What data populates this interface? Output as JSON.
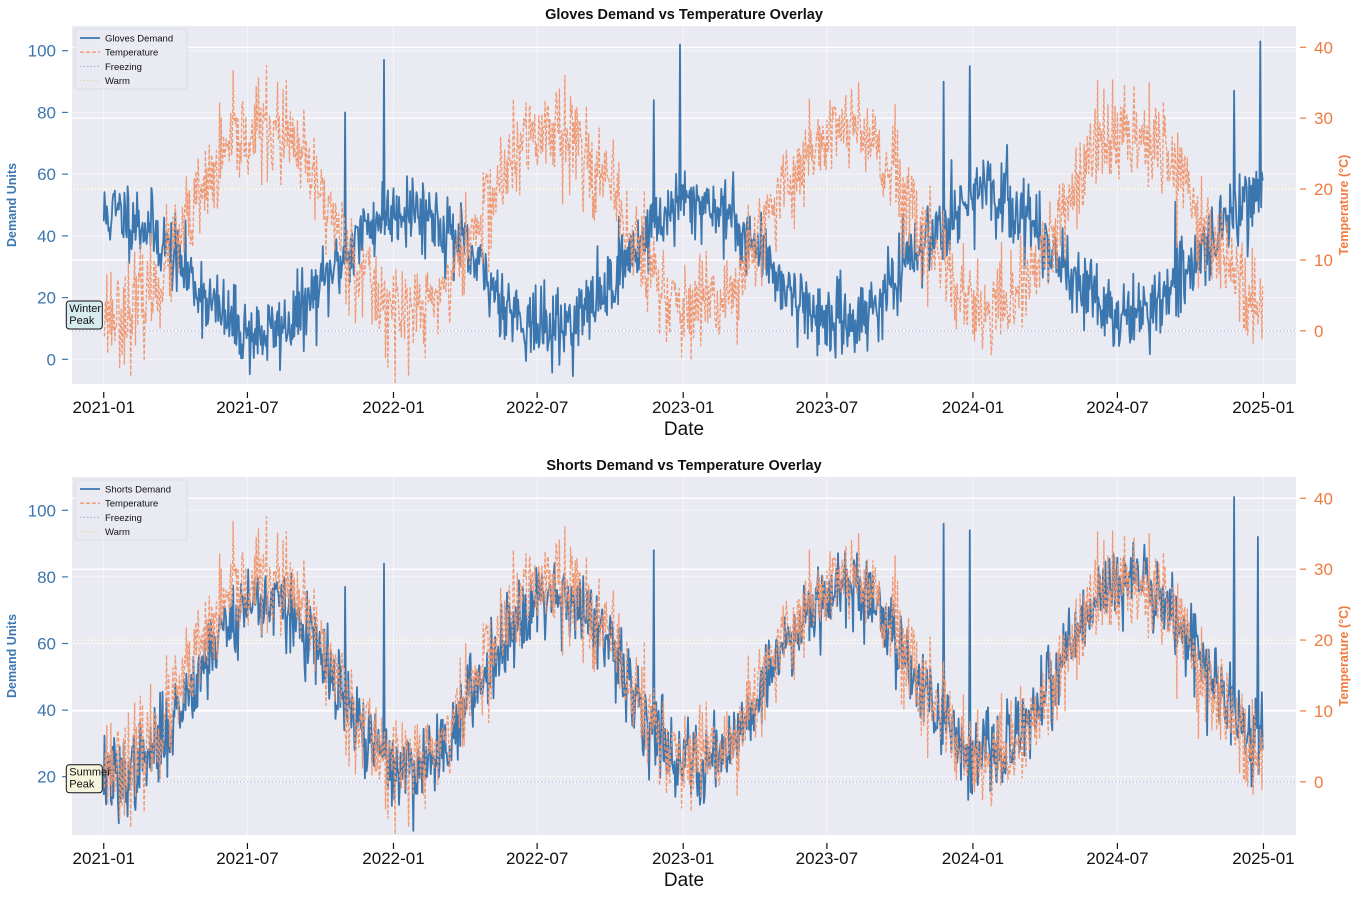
{
  "colors": {
    "demand": "#3b76af",
    "temperature": "#f0966e",
    "temperature_axis": "#f07a3f",
    "freezing": "#a8a8d8",
    "warm": "#d9d8b0",
    "plot_bg": "#e9eaf2",
    "grid": "#ffffff"
  },
  "xlabel": "Date",
  "chart_data": [
    {
      "type": "line",
      "title": "Gloves Demand vs Temperature Overlay",
      "xlabel": "Date",
      "ylabel": "Demand Units",
      "y2label": "Temperature (°C)",
      "x_range": [
        "2021-01-01",
        "2024-12-31"
      ],
      "xlim": [
        "2020-11-22",
        "2025-02-11"
      ],
      "ylim": [
        -8,
        108
      ],
      "y2lim": [
        -7.5,
        43
      ],
      "x_ticks": [
        "2021-01",
        "2021-07",
        "2022-01",
        "2022-07",
        "2023-01",
        "2023-07",
        "2024-01",
        "2024-07",
        "2025-01"
      ],
      "y_ticks": [
        0,
        20,
        40,
        60,
        80,
        100
      ],
      "y2_ticks": [
        0,
        10,
        20,
        30,
        40
      ],
      "grid": true,
      "legend_position": "top-left",
      "legend": [
        "Gloves Demand",
        "Temperature",
        "Freezing",
        "Warm"
      ],
      "reference_lines": [
        {
          "name": "Freezing",
          "y2": 0
        },
        {
          "name": "Warm",
          "y2": 20
        }
      ],
      "annotation": {
        "text": [
          "Winter",
          "Peak"
        ],
        "x": "2020-12-10",
        "y": 15
      },
      "series": [
        {
          "name": "Gloves Demand",
          "axis": "left",
          "style": "solid",
          "model": {
            "base": 27,
            "amplitude": 20,
            "peak_day": 15,
            "trend_per_year": 2,
            "noise": 6,
            "seed": 11
          },
          "spikes": [
            [
              "2021-11-01",
              80
            ],
            [
              "2021-12-20",
              97
            ],
            [
              "2022-11-25",
              84
            ],
            [
              "2022-12-28",
              102
            ],
            [
              "2023-11-25",
              90
            ],
            [
              "2023-12-28",
              95
            ],
            [
              "2024-11-25",
              87
            ],
            [
              "2024-12-28",
              103
            ]
          ]
        },
        {
          "name": "Temperature",
          "axis": "right",
          "style": "dashed",
          "model": {
            "base": 15.5,
            "amplitude": 13,
            "peak_day": 200,
            "trend_per_year": 0,
            "noise": 3.5,
            "seed": 23
          },
          "spikes": [
            [
              "2021-08-15",
              34
            ],
            [
              "2022-08-05",
              36
            ],
            [
              "2023-08-10",
              35
            ],
            [
              "2024-08-10",
              35
            ],
            [
              "2021-02-10",
              -2
            ],
            [
              "2023-03-10",
              -2
            ],
            [
              "2024-01-25",
              -2
            ]
          ]
        }
      ]
    },
    {
      "type": "line",
      "title": "Shorts Demand vs Temperature Overlay",
      "xlabel": "Date",
      "ylabel": "Demand Units",
      "y2label": "Temperature (°C)",
      "x_range": [
        "2021-01-01",
        "2024-12-31"
      ],
      "xlim": [
        "2020-11-22",
        "2025-02-11"
      ],
      "ylim": [
        2.5,
        110
      ],
      "y2lim": [
        -7.5,
        43
      ],
      "x_ticks": [
        "2021-01",
        "2021-07",
        "2022-01",
        "2022-07",
        "2023-01",
        "2023-07",
        "2024-01",
        "2024-07",
        "2025-01"
      ],
      "y_ticks": [
        20,
        40,
        60,
        80,
        100
      ],
      "y2_ticks": [
        0,
        10,
        20,
        30,
        40
      ],
      "grid": true,
      "legend_position": "top-left",
      "legend": [
        "Shorts Demand",
        "Temperature",
        "Freezing",
        "Warm"
      ],
      "reference_lines": [
        {
          "name": "Freezing",
          "y2": 0
        },
        {
          "name": "Warm",
          "y2": 20
        }
      ],
      "annotation": {
        "text": [
          "Summer",
          "Peak"
        ],
        "x": "2020-12-10",
        "y": 20
      },
      "series": [
        {
          "name": "Shorts Demand",
          "axis": "left",
          "style": "solid",
          "model": {
            "base": 46,
            "amplitude": 26,
            "peak_day": 200,
            "trend_per_year": 2,
            "noise": 6,
            "seed": 37
          },
          "spikes": [
            [
              "2021-11-01",
              77
            ],
            [
              "2021-12-20",
              84
            ],
            [
              "2022-11-25",
              88
            ],
            [
              "2023-11-25",
              96
            ],
            [
              "2023-12-28",
              94
            ],
            [
              "2024-11-25",
              104
            ],
            [
              "2024-12-25",
              92
            ],
            [
              "2021-01-20",
              6
            ]
          ]
        },
        {
          "name": "Temperature",
          "axis": "right",
          "style": "dashed",
          "model": {
            "base": 15.5,
            "amplitude": 13,
            "peak_day": 200,
            "trend_per_year": 0,
            "noise": 3.5,
            "seed": 23
          },
          "spikes": [
            [
              "2021-08-15",
              34
            ],
            [
              "2022-08-05",
              36
            ],
            [
              "2023-08-10",
              35
            ],
            [
              "2024-08-10",
              35
            ],
            [
              "2021-02-10",
              -2
            ],
            [
              "2023-03-10",
              -2
            ],
            [
              "2024-01-25",
              -2
            ]
          ]
        }
      ]
    }
  ]
}
